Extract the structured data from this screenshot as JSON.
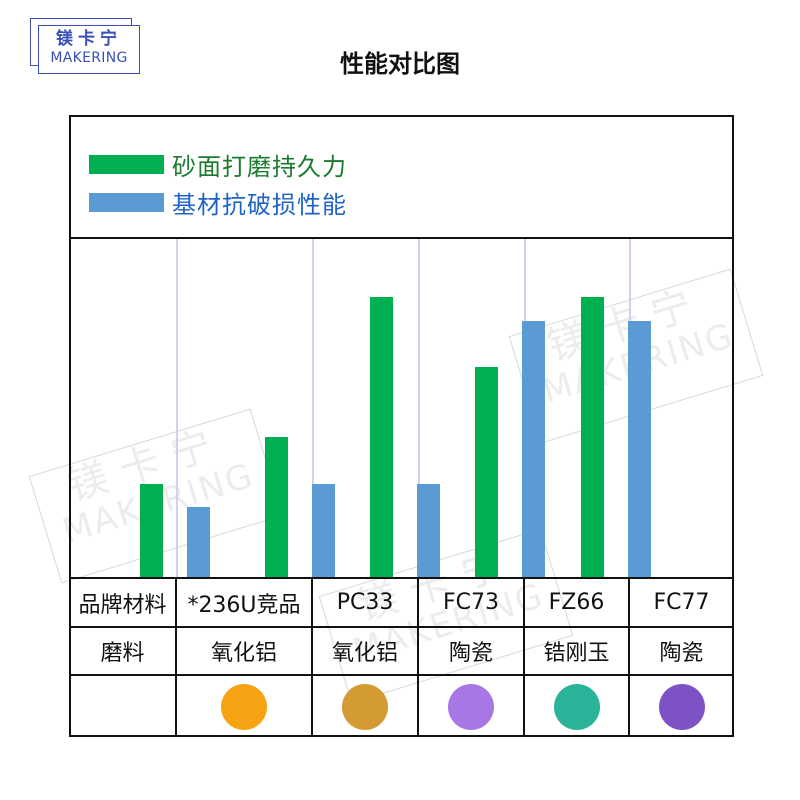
{
  "logo": {
    "cn": "镁卡宁",
    "en": "MAKERING",
    "color": "#3a4fb8"
  },
  "page_title": "性能对比图",
  "legend": [
    {
      "label": "砂面打磨持久力",
      "color": "#00b050",
      "text_color": "#1a7a2e"
    },
    {
      "label": "基材抗破损性能",
      "color": "#5b9bd5",
      "text_color": "#1f63c4"
    }
  ],
  "table": {
    "row_headers": [
      "品牌材料",
      "磨料",
      ""
    ],
    "products": [
      {
        "name": "*236U竞品",
        "abrasive": "氧化铝",
        "color": "#f5a312"
      },
      {
        "name": "PC33",
        "abrasive": "氧化铝",
        "color": "#d49a34"
      },
      {
        "name": "FC73",
        "abrasive": "陶瓷",
        "color": "#a877e6"
      },
      {
        "name": "FZ66",
        "abrasive": "锆刚玉",
        "color": "#2bb39a"
      },
      {
        "name": "FC77",
        "abrasive": "陶瓷",
        "color": "#7d52c4"
      }
    ]
  },
  "watermark": {
    "cn": "镁卡宁",
    "en": "MAKERING"
  },
  "chart_data": {
    "type": "bar",
    "title": "性能对比图",
    "categories": [
      "*236U竞品",
      "PC33",
      "FC73",
      "FZ66",
      "FC77"
    ],
    "series": [
      {
        "name": "砂面打磨持久力",
        "color": "#00b050",
        "values": [
          4,
          6,
          12,
          9,
          12
        ]
      },
      {
        "name": "基材抗破损性能",
        "color": "#5b9bd5",
        "values": [
          3,
          4,
          4,
          11,
          11
        ]
      }
    ],
    "xlabel": "品牌材料",
    "ylabel": "",
    "ylim": [
      0,
      14.5
    ],
    "grid": "vertical category separators",
    "legend_position": "top",
    "abrasives": [
      "氧化铝",
      "氧化铝",
      "陶瓷",
      "锆刚玉",
      "陶瓷"
    ]
  }
}
